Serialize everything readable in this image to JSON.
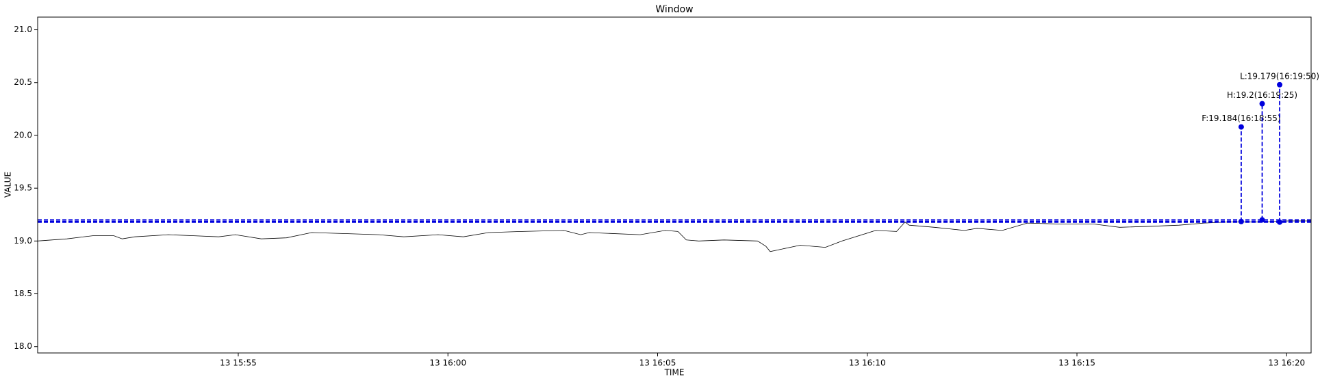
{
  "chart_data": {
    "type": "line",
    "title": "Window",
    "x_label": "TIME",
    "y_label": "VALUE",
    "x": [
      "15:50:13",
      "15:50:55",
      "15:51:32",
      "15:52:02",
      "15:52:14",
      "15:52:32",
      "15:53:20",
      "15:53:56",
      "15:54:32",
      "15:54:56",
      "15:55:33",
      "15:56:09",
      "15:56:45",
      "15:57:33",
      "15:58:21",
      "15:58:57",
      "15:59:46",
      "16:00:22",
      "16:00:58",
      "16:01:46",
      "16:02:46",
      "16:03:10",
      "16:03:22",
      "16:04:35",
      "16:05:11",
      "16:05:29",
      "16:05:41",
      "16:05:59",
      "16:06:35",
      "16:07:23",
      "16:07:35",
      "16:07:41",
      "16:08:24",
      "16:09:00",
      "16:09:24",
      "16:10:12",
      "16:10:42",
      "16:10:54",
      "16:11:00",
      "16:11:36",
      "16:12:19",
      "16:12:37",
      "16:13:13",
      "16:13:49",
      "16:14:37",
      "16:15:25",
      "16:16:01",
      "16:16:50",
      "16:17:26",
      "16:18:02",
      "16:18:38",
      "16:19:26",
      "16:20:02",
      "16:20:35"
    ],
    "series": [
      {
        "color": "#000000",
        "values": [
          19.0,
          19.02,
          19.05,
          19.05,
          19.02,
          19.04,
          19.06,
          19.05,
          19.04,
          19.06,
          19.02,
          19.03,
          19.08,
          19.07,
          19.06,
          19.04,
          19.06,
          19.04,
          19.08,
          19.09,
          19.1,
          19.06,
          19.08,
          19.06,
          19.1,
          19.09,
          19.01,
          19.0,
          19.01,
          19.0,
          18.95,
          18.9,
          18.96,
          18.94,
          19.0,
          19.1,
          19.09,
          19.18,
          19.15,
          19.13,
          19.1,
          19.12,
          19.1,
          19.17,
          19.16,
          19.16,
          19.13,
          19.14,
          19.15,
          19.17,
          19.18,
          19.18,
          19.19,
          19.19
        ]
      }
    ],
    "annotations": [
      {
        "text": "F:19.184(16:18:55)",
        "x": "16:18:55",
        "value": 19.184,
        "marker_top": 20.08
      },
      {
        "text": "H:19.2(16:19:25)",
        "x": "16:19:25",
        "value": 19.2,
        "marker_top": 20.3
      },
      {
        "text": "L:19.179(16:19:50)",
        "x": "16:19:50",
        "value": 19.179,
        "marker_top": 20.48
      }
    ],
    "annotation_color": "#0000dd",
    "xlim": [
      "15:50:13",
      "16:20:35"
    ],
    "xticks": [
      {
        "value": "15:55",
        "label": "13 15:55"
      },
      {
        "value": "16:00",
        "label": "13 16:00"
      },
      {
        "value": "16:05",
        "label": "13 16:05"
      },
      {
        "value": "16:10",
        "label": "13 16:10"
      },
      {
        "value": "16:15",
        "label": "13 16:15"
      },
      {
        "value": "16:20",
        "label": "13 16:20"
      }
    ],
    "ylim": [
      17.94,
      21.12
    ],
    "yticks": [
      {
        "value": 18,
        "label": "18.0"
      },
      18.5,
      {
        "value": 19,
        "label": "19.0"
      },
      19.5,
      {
        "value": 20,
        "label": "20.0"
      },
      20.5,
      {
        "value": 21,
        "label": "21.0"
      }
    ]
  }
}
